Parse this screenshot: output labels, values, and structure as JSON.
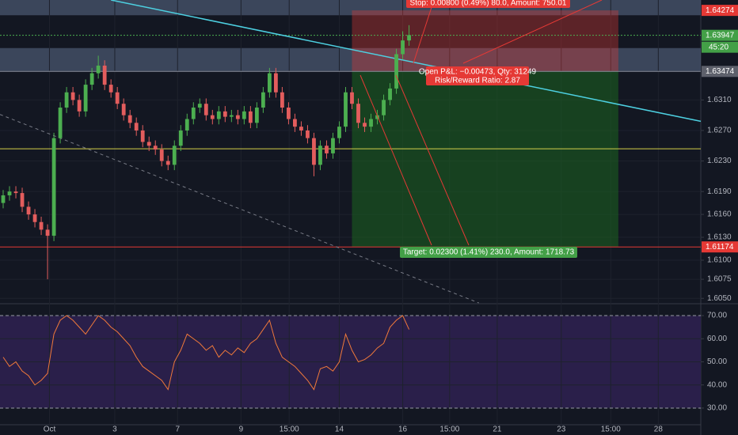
{
  "chart_data": [
    {
      "type": "candlestick",
      "x": [
        0,
        1,
        2,
        3,
        4,
        5,
        6,
        7,
        8,
        9,
        10,
        11,
        12,
        13,
        14,
        15,
        16,
        17,
        18,
        19,
        20,
        21,
        22,
        23,
        24,
        25,
        26,
        27,
        28,
        29,
        30,
        31,
        32,
        33,
        34,
        35,
        36,
        37,
        38,
        39,
        40,
        41,
        42,
        43,
        44,
        45,
        46,
        47,
        48,
        49,
        50,
        51,
        52,
        53,
        54,
        55,
        56,
        57,
        58,
        59,
        60,
        61,
        62,
        63,
        64
      ],
      "open": [
        1.6175,
        1.6185,
        1.619,
        1.6188,
        1.617,
        1.616,
        1.615,
        1.614,
        1.6132,
        1.626,
        1.63,
        1.632,
        1.631,
        1.6295,
        1.633,
        1.6345,
        1.6355,
        1.633,
        1.632,
        1.6305,
        1.629,
        1.628,
        1.627,
        1.6255,
        1.625,
        1.6245,
        1.623,
        1.6225,
        1.625,
        1.627,
        1.6285,
        1.63,
        1.6305,
        1.629,
        1.6285,
        1.6295,
        1.6288,
        1.629,
        1.6285,
        1.6295,
        1.628,
        1.63,
        1.632,
        1.6345,
        1.632,
        1.63,
        1.6285,
        1.6275,
        1.627,
        1.626,
        1.6225,
        1.625,
        1.624,
        1.626,
        1.6275,
        1.632,
        1.6305,
        1.628,
        1.6275,
        1.6285,
        1.629,
        1.631,
        1.6325,
        1.637,
        1.6388
      ],
      "high": [
        1.6192,
        1.6197,
        1.6197,
        1.6195,
        1.6177,
        1.6167,
        1.6157,
        1.6147,
        1.6267,
        1.6307,
        1.6327,
        1.6327,
        1.6317,
        1.6337,
        1.6352,
        1.6368,
        1.6362,
        1.6337,
        1.6327,
        1.6312,
        1.6297,
        1.6287,
        1.6277,
        1.6262,
        1.6257,
        1.6252,
        1.6237,
        1.6257,
        1.6277,
        1.6292,
        1.6307,
        1.6312,
        1.6312,
        1.6297,
        1.6302,
        1.6302,
        1.6297,
        1.6297,
        1.6302,
        1.6302,
        1.6307,
        1.6327,
        1.6352,
        1.6352,
        1.6327,
        1.6307,
        1.6292,
        1.6282,
        1.6277,
        1.6267,
        1.6257,
        1.6257,
        1.6267,
        1.6282,
        1.6327,
        1.6327,
        1.6312,
        1.6287,
        1.6292,
        1.6297,
        1.6317,
        1.6332,
        1.6377,
        1.64,
        1.6408
      ],
      "low": [
        1.6168,
        1.6178,
        1.6181,
        1.6163,
        1.6153,
        1.6143,
        1.6133,
        1.6075,
        1.6125,
        1.6253,
        1.6293,
        1.6303,
        1.6288,
        1.6288,
        1.6323,
        1.6338,
        1.6323,
        1.6313,
        1.6298,
        1.6283,
        1.6273,
        1.6263,
        1.6248,
        1.6243,
        1.6238,
        1.6223,
        1.6218,
        1.6218,
        1.6243,
        1.6263,
        1.6278,
        1.6293,
        1.6283,
        1.6278,
        1.6278,
        1.6281,
        1.6281,
        1.6278,
        1.6278,
        1.6273,
        1.6273,
        1.6293,
        1.6313,
        1.6313,
        1.6293,
        1.6278,
        1.6268,
        1.6263,
        1.6253,
        1.621,
        1.6218,
        1.6233,
        1.6233,
        1.6253,
        1.6268,
        1.6298,
        1.6273,
        1.6268,
        1.6268,
        1.6278,
        1.6283,
        1.6303,
        1.6318,
        1.6363,
        1.6381
      ],
      "close": [
        1.6185,
        1.619,
        1.6188,
        1.617,
        1.616,
        1.615,
        1.614,
        1.6132,
        1.626,
        1.63,
        1.632,
        1.631,
        1.6295,
        1.633,
        1.6345,
        1.6355,
        1.633,
        1.632,
        1.6305,
        1.629,
        1.628,
        1.627,
        1.6255,
        1.625,
        1.6245,
        1.623,
        1.6225,
        1.625,
        1.627,
        1.6285,
        1.63,
        1.6305,
        1.629,
        1.6285,
        1.6295,
        1.6288,
        1.629,
        1.6285,
        1.6295,
        1.628,
        1.63,
        1.632,
        1.6345,
        1.632,
        1.63,
        1.6285,
        1.6275,
        1.627,
        1.626,
        1.6225,
        1.625,
        1.624,
        1.626,
        1.6275,
        1.632,
        1.6305,
        1.628,
        1.6275,
        1.6285,
        1.629,
        1.631,
        1.6325,
        1.637,
        1.6388,
        1.6395
      ],
      "up_color": "#4caf50",
      "down_color": "#e35d5d",
      "xlim": [
        -0.5,
        110
      ],
      "ylim": [
        1.6044,
        1.6441
      ],
      "yticks": [
        {
          "value": 1.631,
          "label": "1.6310"
        },
        {
          "value": 1.627,
          "label": "1.6270"
        },
        {
          "value": 1.623,
          "label": "1.6230"
        },
        {
          "value": 1.619,
          "label": "1.6190"
        },
        {
          "value": 1.616,
          "label": "1.6160"
        },
        {
          "value": 1.613,
          "label": "1.6130"
        },
        {
          "value": 1.61,
          "label": "1.6100"
        },
        1.6075,
        {
          "value": 1.605,
          "label": "1.6050"
        }
      ],
      "price_labels": [
        {
          "value": 1.64274,
          "color": "#e53935"
        },
        {
          "value": 1.63947,
          "color": "#43a047"
        },
        {
          "value": 1.63474,
          "color": "#5d606b"
        },
        {
          "value": 1.61174,
          "color": "#e53935"
        }
      ],
      "countdown": "45:20",
      "hlines": [
        {
          "value": 1.63947,
          "color": "#4caf50",
          "dash": true
        },
        {
          "value": 1.63474,
          "color": "#8a8f9c",
          "dash": false
        },
        {
          "value": 1.6246,
          "color": "#d4d04a",
          "dash": false
        },
        {
          "value": 1.61174,
          "color": "#e53935",
          "dash": false
        }
      ],
      "zones": [
        [
          1.6421,
          1.6441
        ],
        [
          1.6348,
          1.6378
        ]
      ],
      "trendlines": [
        {
          "x": [
            17,
            110
          ],
          "y": [
            1.6441,
            1.6282
          ],
          "color": "#4dd0e1",
          "dash": false
        },
        {
          "x": [
            -0.5,
            75
          ],
          "y": [
            1.6291,
            1.6044
          ],
          "color": "#787b86",
          "dash": true
        }
      ],
      "position": {
        "x_range": [
          55,
          97
        ],
        "entry": 1.63474,
        "stop": 1.64274,
        "target": 1.61174,
        "stop_text": "Stop: 0.00800 (0.49%) 80.0, Amount: 750.01",
        "pnl_text": "Open P&L: −0.00473, Qty: 31249",
        "rr_text": "Risk/Reward Ratio: 2.87",
        "target_text": "Target: 0.02300 (1.41%) 230.0, Amount: 1718.73"
      }
    },
    {
      "type": "line",
      "x": [
        0,
        1,
        2,
        3,
        4,
        5,
        6,
        7,
        8,
        9,
        10,
        11,
        12,
        13,
        14,
        15,
        16,
        17,
        18,
        19,
        20,
        21,
        22,
        23,
        24,
        25,
        26,
        27,
        28,
        29,
        30,
        31,
        32,
        33,
        34,
        35,
        36,
        37,
        38,
        39,
        40,
        41,
        42,
        43,
        44,
        45,
        46,
        47,
        48,
        49,
        50,
        51,
        52,
        53,
        54,
        55,
        56,
        57,
        58,
        59,
        60,
        61,
        62,
        63,
        64
      ],
      "values": [
        52,
        48,
        50,
        46,
        44,
        40,
        42,
        45,
        62,
        68,
        70,
        68,
        65,
        62,
        66,
        70,
        68,
        65,
        63,
        60,
        57,
        52,
        48,
        46,
        44,
        42,
        38,
        50,
        55,
        62,
        60,
        58,
        55,
        57,
        52,
        55,
        53,
        56,
        54,
        58,
        60,
        64,
        68,
        58,
        52,
        50,
        48,
        45,
        42,
        38,
        47,
        48,
        46,
        50,
        62,
        55,
        50,
        51,
        53,
        56,
        58,
        65,
        68,
        70,
        64
      ],
      "color": "#f0793a",
      "xlim": [
        -0.5,
        110
      ],
      "ylim": [
        22.8,
        74.8
      ],
      "yticks": [
        {
          "value": 70,
          "label": "70.00"
        },
        {
          "value": 60,
          "label": "60.00"
        },
        {
          "value": 50,
          "label": "50.00"
        },
        {
          "value": 40,
          "label": "40.00"
        },
        {
          "value": 30,
          "label": "30.00"
        }
      ],
      "band": [
        30,
        70
      ],
      "xticks": [
        {
          "value": 7.3,
          "label": "Oct"
        },
        {
          "value": 17.6,
          "label": "3"
        },
        {
          "value": 27.5,
          "label": "7"
        },
        {
          "value": 37.5,
          "label": "9"
        },
        {
          "value": 45.1,
          "label": "15:00"
        },
        {
          "value": 53,
          "label": "14"
        },
        {
          "value": 63,
          "label": "16"
        },
        {
          "value": 70.4,
          "label": "15:00"
        },
        {
          "value": 77.9,
          "label": "21"
        },
        {
          "value": 88,
          "label": "23"
        },
        {
          "value": 95.8,
          "label": "15:00"
        },
        {
          "value": 103.3,
          "label": "28"
        }
      ]
    }
  ]
}
